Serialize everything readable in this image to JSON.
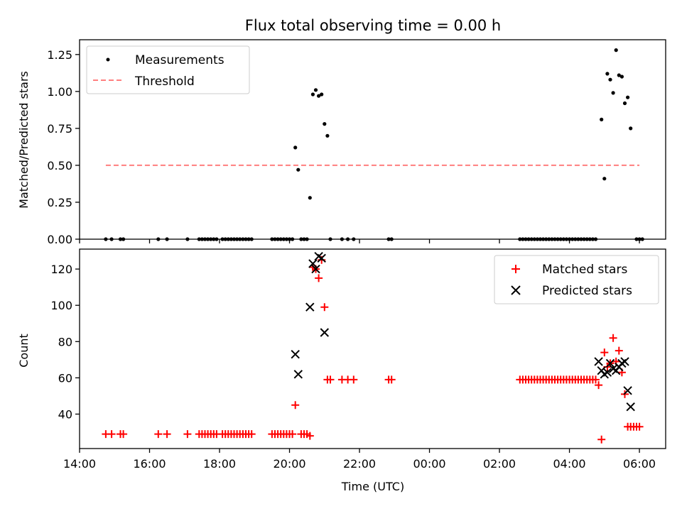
{
  "title": "Flux total observing time = 0.00 h",
  "colors": {
    "measurement": "#000000",
    "threshold": "#ff7f7f",
    "matched": "#ff0000",
    "predicted": "#000000"
  },
  "chart_data": [
    {
      "type": "scatter",
      "panel": "top",
      "ylabel": "Matched/Predicted stars",
      "xlabel": "",
      "xlim": [
        "14:00",
        "30:45"
      ],
      "ylim": [
        0,
        1.35
      ],
      "yticks": [
        "0.00",
        "0.25",
        "0.50",
        "0.75",
        "1.00",
        "1.25"
      ],
      "legend": {
        "placement": "top-left",
        "entries": [
          "Measurements",
          "Threshold"
        ]
      },
      "threshold": {
        "name": "Threshold",
        "value": 0.5,
        "x_start": "14:45",
        "x_end": "30:00"
      },
      "series": [
        {
          "name": "Measurements",
          "points": [
            [
              "14:45",
              0
            ],
            [
              "14:55",
              0
            ],
            [
              "15:10",
              0
            ],
            [
              "15:15",
              0
            ],
            [
              "16:15",
              0
            ],
            [
              "16:30",
              0
            ],
            [
              "17:05",
              0
            ],
            [
              "17:25",
              0
            ],
            [
              "17:30",
              0
            ],
            [
              "17:35",
              0
            ],
            [
              "17:40",
              0
            ],
            [
              "17:45",
              0
            ],
            [
              "17:50",
              0
            ],
            [
              "17:55",
              0
            ],
            [
              "18:05",
              0
            ],
            [
              "18:10",
              0
            ],
            [
              "18:15",
              0
            ],
            [
              "18:20",
              0
            ],
            [
              "18:25",
              0
            ],
            [
              "18:30",
              0
            ],
            [
              "18:35",
              0
            ],
            [
              "18:40",
              0
            ],
            [
              "18:45",
              0
            ],
            [
              "18:50",
              0
            ],
            [
              "18:55",
              0
            ],
            [
              "19:30",
              0
            ],
            [
              "19:35",
              0
            ],
            [
              "19:40",
              0
            ],
            [
              "19:45",
              0
            ],
            [
              "19:50",
              0
            ],
            [
              "19:55",
              0
            ],
            [
              "20:00",
              0
            ],
            [
              "20:05",
              0
            ],
            [
              "20:10",
              0.62
            ],
            [
              "20:15",
              0.47
            ],
            [
              "20:20",
              0
            ],
            [
              "20:25",
              0
            ],
            [
              "20:30",
              0
            ],
            [
              "20:35",
              0.28
            ],
            [
              "20:40",
              0.98
            ],
            [
              "20:45",
              1.01
            ],
            [
              "20:50",
              0.97
            ],
            [
              "20:55",
              0.98
            ],
            [
              "21:00",
              0.78
            ],
            [
              "21:05",
              0.7
            ],
            [
              "21:10",
              0
            ],
            [
              "21:30",
              0
            ],
            [
              "21:40",
              0
            ],
            [
              "21:50",
              0
            ],
            [
              "22:50",
              0
            ],
            [
              "22:55",
              0
            ],
            [
              "02:35",
              0
            ],
            [
              "02:40",
              0
            ],
            [
              "02:45",
              0
            ],
            [
              "02:50",
              0
            ],
            [
              "02:55",
              0
            ],
            [
              "03:00",
              0
            ],
            [
              "03:05",
              0
            ],
            [
              "03:10",
              0
            ],
            [
              "03:15",
              0
            ],
            [
              "03:20",
              0
            ],
            [
              "03:25",
              0
            ],
            [
              "03:30",
              0
            ],
            [
              "03:35",
              0
            ],
            [
              "03:40",
              0
            ],
            [
              "03:45",
              0
            ],
            [
              "03:50",
              0
            ],
            [
              "03:55",
              0
            ],
            [
              "04:00",
              0
            ],
            [
              "04:05",
              0
            ],
            [
              "04:10",
              0
            ],
            [
              "04:15",
              0
            ],
            [
              "04:20",
              0
            ],
            [
              "04:25",
              0
            ],
            [
              "04:30",
              0
            ],
            [
              "04:35",
              0
            ],
            [
              "04:40",
              0
            ],
            [
              "04:45",
              0
            ],
            [
              "04:55",
              0.81
            ],
            [
              "05:00",
              0.41
            ],
            [
              "05:05",
              1.12
            ],
            [
              "05:10",
              1.08
            ],
            [
              "05:15",
              0.99
            ],
            [
              "05:20",
              1.28
            ],
            [
              "05:25",
              1.11
            ],
            [
              "05:30",
              1.1
            ],
            [
              "05:35",
              0.92
            ],
            [
              "05:40",
              0.96
            ],
            [
              "05:45",
              0.75
            ],
            [
              "05:55",
              0
            ],
            [
              "06:00",
              0
            ],
            [
              "06:05",
              0
            ]
          ]
        }
      ]
    },
    {
      "type": "scatter",
      "panel": "bottom",
      "ylabel": "Count",
      "xlabel": "Time (UTC)",
      "xlim": [
        "14:00",
        "30:45"
      ],
      "ylim": [
        21,
        131
      ],
      "yticks": [
        "40",
        "60",
        "80",
        "100",
        "120"
      ],
      "xticks": [
        "14:00",
        "16:00",
        "18:00",
        "20:00",
        "22:00",
        "00:00",
        "02:00",
        "04:00",
        "06:00"
      ],
      "legend": {
        "placement": "top-right",
        "entries": [
          "Matched stars",
          "Predicted stars"
        ]
      },
      "series": [
        {
          "name": "Matched stars",
          "marker": "+",
          "points": [
            [
              "14:45",
              29
            ],
            [
              "14:55",
              29
            ],
            [
              "15:10",
              29
            ],
            [
              "15:15",
              29
            ],
            [
              "16:15",
              29
            ],
            [
              "16:30",
              29
            ],
            [
              "17:05",
              29
            ],
            [
              "17:25",
              29
            ],
            [
              "17:30",
              29
            ],
            [
              "17:35",
              29
            ],
            [
              "17:40",
              29
            ],
            [
              "17:45",
              29
            ],
            [
              "17:50",
              29
            ],
            [
              "17:55",
              29
            ],
            [
              "18:05",
              29
            ],
            [
              "18:10",
              29
            ],
            [
              "18:15",
              29
            ],
            [
              "18:20",
              29
            ],
            [
              "18:25",
              29
            ],
            [
              "18:30",
              29
            ],
            [
              "18:35",
              29
            ],
            [
              "18:40",
              29
            ],
            [
              "18:45",
              29
            ],
            [
              "18:50",
              29
            ],
            [
              "18:55",
              29
            ],
            [
              "19:30",
              29
            ],
            [
              "19:35",
              29
            ],
            [
              "19:40",
              29
            ],
            [
              "19:45",
              29
            ],
            [
              "19:50",
              29
            ],
            [
              "19:55",
              29
            ],
            [
              "20:00",
              29
            ],
            [
              "20:05",
              29
            ],
            [
              "20:10",
              45
            ],
            [
              "20:20",
              29
            ],
            [
              "20:25",
              29
            ],
            [
              "20:30",
              29
            ],
            [
              "20:35",
              28
            ],
            [
              "20:40",
              121
            ],
            [
              "20:45",
              120
            ],
            [
              "20:50",
              115
            ],
            [
              "20:55",
              125
            ],
            [
              "21:00",
              99
            ],
            [
              "21:05",
              59
            ],
            [
              "21:10",
              59
            ],
            [
              "21:30",
              59
            ],
            [
              "21:40",
              59
            ],
            [
              "21:50",
              59
            ],
            [
              "22:50",
              59
            ],
            [
              "22:55",
              59
            ],
            [
              "02:35",
              59
            ],
            [
              "02:40",
              59
            ],
            [
              "02:45",
              59
            ],
            [
              "02:50",
              59
            ],
            [
              "02:55",
              59
            ],
            [
              "03:00",
              59
            ],
            [
              "03:05",
              59
            ],
            [
              "03:10",
              59
            ],
            [
              "03:15",
              59
            ],
            [
              "03:20",
              59
            ],
            [
              "03:25",
              59
            ],
            [
              "03:30",
              59
            ],
            [
              "03:35",
              59
            ],
            [
              "03:40",
              59
            ],
            [
              "03:45",
              59
            ],
            [
              "03:50",
              59
            ],
            [
              "03:55",
              59
            ],
            [
              "04:00",
              59
            ],
            [
              "04:05",
              59
            ],
            [
              "04:10",
              59
            ],
            [
              "04:15",
              59
            ],
            [
              "04:20",
              59
            ],
            [
              "04:25",
              59
            ],
            [
              "04:30",
              59
            ],
            [
              "04:35",
              59
            ],
            [
              "04:40",
              59
            ],
            [
              "04:45",
              59
            ],
            [
              "04:50",
              56
            ],
            [
              "04:55",
              26
            ],
            [
              "05:00",
              74
            ],
            [
              "05:05",
              66
            ],
            [
              "05:10",
              68
            ],
            [
              "05:15",
              82
            ],
            [
              "05:20",
              69
            ],
            [
              "05:25",
              75
            ],
            [
              "05:30",
              63
            ],
            [
              "05:35",
              51
            ],
            [
              "05:40",
              33
            ],
            [
              "05:45",
              33
            ],
            [
              "05:50",
              33
            ],
            [
              "05:55",
              33
            ],
            [
              "06:00",
              33
            ]
          ]
        },
        {
          "name": "Predicted stars",
          "marker": "x",
          "points": [
            [
              "20:10",
              73
            ],
            [
              "20:15",
              62
            ],
            [
              "20:35",
              99
            ],
            [
              "20:40",
              123
            ],
            [
              "20:45",
              120
            ],
            [
              "20:50",
              127
            ],
            [
              "20:55",
              126
            ],
            [
              "21:00",
              85
            ],
            [
              "04:50",
              69
            ],
            [
              "04:55",
              64
            ],
            [
              "05:00",
              62
            ],
            [
              "05:05",
              63
            ],
            [
              "05:10",
              68
            ],
            [
              "05:15",
              65
            ],
            [
              "05:20",
              64
            ],
            [
              "05:25",
              66
            ],
            [
              "05:30",
              68
            ],
            [
              "05:35",
              69
            ],
            [
              "05:40",
              53
            ],
            [
              "05:45",
              44
            ]
          ]
        }
      ]
    }
  ]
}
